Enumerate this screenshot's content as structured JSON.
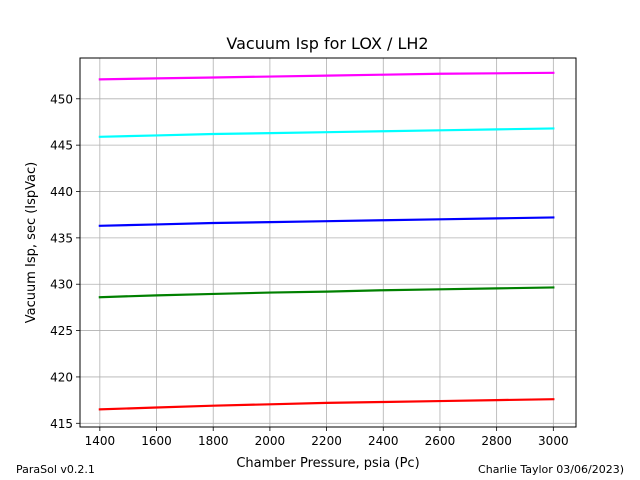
{
  "chart_data": {
    "type": "line",
    "title": "Vacuum Isp for LOX / LH2",
    "xlabel": "Chamber Pressure, psia (Pc)",
    "ylabel": "Vacuum Isp, sec (IspVac)",
    "xlim": [
      1330,
      3080
    ],
    "ylim": [
      414.6,
      454.4
    ],
    "xticks": [
      1400,
      1600,
      1800,
      2000,
      2200,
      2400,
      2600,
      2800,
      3000
    ],
    "yticks": [
      415,
      420,
      425,
      430,
      435,
      440,
      445,
      450
    ],
    "grid": true,
    "x": [
      1400,
      1600,
      1800,
      2000,
      2200,
      2400,
      2600,
      2800,
      3000
    ],
    "series": [
      {
        "color": "#ff00ff",
        "values": [
          452.1,
          452.2,
          452.3,
          452.4,
          452.5,
          452.6,
          452.7,
          452.75,
          452.8
        ]
      },
      {
        "color": "#00ffff",
        "values": [
          445.9,
          446.05,
          446.2,
          446.3,
          446.4,
          446.5,
          446.6,
          446.7,
          446.8
        ]
      },
      {
        "color": "#0000ff",
        "values": [
          436.3,
          436.45,
          436.6,
          436.7,
          436.8,
          436.9,
          437.0,
          437.1,
          437.2
        ]
      },
      {
        "color": "#008000",
        "values": [
          428.6,
          428.8,
          428.95,
          429.1,
          429.2,
          429.35,
          429.45,
          429.55,
          429.65
        ]
      },
      {
        "color": "#ff0000",
        "values": [
          416.5,
          416.7,
          416.9,
          417.05,
          417.2,
          417.3,
          417.4,
          417.5,
          417.6
        ]
      }
    ]
  },
  "footer": {
    "left": "ParaSol v0.2.1",
    "right": "Charlie Taylor 03/06/2023)"
  }
}
